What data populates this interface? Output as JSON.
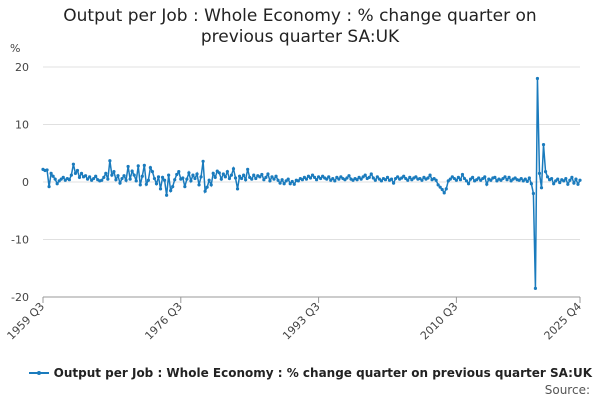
{
  "chart_data": {
    "type": "line",
    "title": "Output per Job : Whole Economy : % change quarter on previous quarter SA:UK",
    "y_label": "%",
    "source": "Source:",
    "ylim": [
      -20,
      20
    ],
    "yticks": [
      -20,
      -10,
      0,
      10,
      20
    ],
    "grid": true,
    "categories": [
      "1959 Q3",
      null,
      null,
      null,
      null,
      null,
      null,
      null,
      null,
      null,
      null,
      null,
      null,
      null,
      null,
      null,
      null,
      null,
      null,
      null,
      null,
      null,
      null,
      null,
      null,
      null,
      null,
      null,
      null,
      null,
      null,
      null,
      null,
      null,
      null,
      null,
      null,
      null,
      null,
      null,
      null,
      null,
      null,
      null,
      null,
      null,
      null,
      null,
      null,
      null,
      null,
      null,
      null,
      null,
      null,
      null,
      null,
      null,
      null,
      null,
      null,
      null,
      null,
      null,
      null,
      null,
      null,
      null,
      "1976 Q3",
      null,
      null,
      null,
      null,
      null,
      null,
      null,
      null,
      null,
      null,
      null,
      null,
      null,
      null,
      null,
      null,
      null,
      null,
      null,
      null,
      null,
      null,
      null,
      null,
      null,
      null,
      null,
      null,
      null,
      null,
      null,
      null,
      null,
      null,
      null,
      null,
      null,
      null,
      null,
      null,
      null,
      null,
      null,
      null,
      null,
      null,
      null,
      null,
      null,
      null,
      null,
      null,
      null,
      null,
      null,
      null,
      null,
      null,
      null,
      null,
      null,
      null,
      null,
      null,
      null,
      null,
      null,
      "1993 Q3",
      null,
      null,
      null,
      null,
      null,
      null,
      null,
      null,
      null,
      null,
      null,
      null,
      null,
      null,
      null,
      null,
      null,
      null,
      null,
      null,
      null,
      null,
      null,
      null,
      null,
      null,
      null,
      null,
      null,
      null,
      null,
      null,
      null,
      null,
      null,
      null,
      null,
      null,
      null,
      null,
      null,
      null,
      null,
      null,
      null,
      null,
      null,
      null,
      null,
      null,
      null,
      null,
      null,
      null,
      null,
      null,
      null,
      null,
      null,
      null,
      null,
      null,
      null,
      null,
      null,
      null,
      null,
      "2010 Q3",
      null,
      null,
      null,
      null,
      null,
      null,
      null,
      null,
      null,
      null,
      null,
      null,
      null,
      null,
      null,
      null,
      null,
      null,
      null,
      null,
      null,
      null,
      null,
      null,
      null,
      null,
      null,
      null,
      null,
      null,
      null,
      null,
      null,
      null,
      null,
      null,
      null,
      null,
      null,
      null,
      null,
      null,
      null,
      null,
      null,
      null,
      null,
      null,
      null,
      null,
      null,
      null,
      null,
      null,
      null,
      null,
      null,
      null,
      null,
      null,
      "2025 Q4"
    ],
    "series": [
      {
        "name": "Output per Job : Whole Economy : % change quarter on previous quarter SA:UK",
        "color": "#1a7bbd",
        "values": [
          2.2,
          2.0,
          2.1,
          -0.8,
          1.5,
          1.0,
          0.5,
          -0.3,
          0.2,
          0.5,
          0.8,
          0.3,
          0.6,
          0.4,
          1.2,
          3.1,
          1.5,
          2.0,
          0.8,
          1.5,
          0.9,
          1.1,
          0.5,
          0.9,
          0.3,
          0.6,
          1.0,
          0.4,
          0.2,
          0.3,
          0.8,
          1.5,
          0.5,
          3.7,
          1.2,
          1.8,
          0.4,
          1.1,
          -0.2,
          0.6,
          1.1,
          0.3,
          2.7,
          0.5,
          1.9,
          1.2,
          0.2,
          2.8,
          -0.5,
          1.0,
          2.9,
          -0.4,
          0.3,
          2.5,
          1.8,
          0.6,
          -0.3,
          0.9,
          -1.2,
          0.8,
          0.3,
          -2.3,
          1.2,
          -1.5,
          -0.8,
          0.4,
          1.3,
          1.8,
          0.5,
          0.7,
          -0.8,
          0.5,
          1.6,
          0.2,
          1.2,
          0.6,
          1.4,
          -0.5,
          0.9,
          3.6,
          -1.6,
          -0.9,
          0.3,
          -0.5,
          1.5,
          0.8,
          1.9,
          1.6,
          0.5,
          1.4,
          0.9,
          1.8,
          0.6,
          1.2,
          2.3,
          0.7,
          -1.2,
          1.0,
          0.6,
          1.2,
          0.4,
          2.2,
          0.8,
          0.5,
          1.2,
          0.6,
          1.1,
          0.9,
          1.3,
          0.4,
          0.8,
          1.4,
          0.2,
          0.9,
          0.5,
          1.0,
          0.3,
          -0.2,
          0.4,
          -0.3,
          0.2,
          0.5,
          -0.3,
          0.1,
          -0.4,
          0.3,
          0.2,
          0.6,
          0.4,
          0.8,
          0.5,
          1.0,
          0.7,
          1.2,
          0.8,
          0.4,
          0.9,
          0.6,
          1.0,
          0.7,
          0.5,
          0.9,
          0.3,
          0.6,
          0.2,
          0.8,
          0.5,
          0.9,
          0.6,
          0.4,
          0.7,
          1.1,
          0.5,
          0.3,
          0.6,
          0.4,
          0.8,
          0.5,
          0.9,
          1.2,
          0.6,
          0.8,
          1.4,
          0.7,
          0.3,
          0.9,
          0.5,
          0.2,
          0.6,
          0.4,
          0.8,
          0.3,
          0.5,
          -0.2,
          0.6,
          0.9,
          0.5,
          0.7,
          1.0,
          0.6,
          0.3,
          0.8,
          0.4,
          0.7,
          0.9,
          0.5,
          0.6,
          0.3,
          0.8,
          0.5,
          0.7,
          1.2,
          0.4,
          0.6,
          0.3,
          -0.5,
          -0.9,
          -1.3,
          -1.9,
          -1.2,
          0.2,
          0.5,
          0.9,
          0.6,
          0.3,
          0.8,
          0.4,
          1.3,
          0.6,
          0.2,
          -0.3,
          0.5,
          0.8,
          0.2,
          0.4,
          0.7,
          0.3,
          0.6,
          0.9,
          -0.4,
          0.5,
          0.3,
          0.7,
          0.8,
          0.2,
          0.5,
          0.3,
          0.6,
          0.9,
          0.4,
          0.8,
          0.2,
          0.5,
          0.7,
          0.4,
          0.3,
          0.6,
          0.2,
          0.5,
          0.1,
          0.7,
          -0.3,
          -2.0,
          -18.5,
          18.0,
          1.5,
          -1.0,
          6.5,
          1.8,
          0.9,
          0.4,
          0.6,
          -0.3,
          0.2,
          0.5,
          -0.1,
          0.4,
          0.2,
          0.6,
          -0.4,
          0.3,
          0.8,
          -0.2,
          0.5,
          -0.4,
          0.3
        ]
      }
    ]
  }
}
